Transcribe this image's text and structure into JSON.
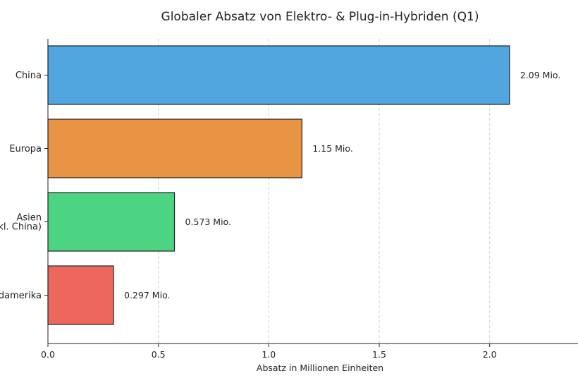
{
  "chart_data": {
    "type": "bar",
    "orientation": "horizontal",
    "title": "Globaler Absatz von Elektro- & Plug-in-Hybriden (Q1)",
    "xlabel": "Absatz in Millionen Einheiten",
    "ylabel": "",
    "xlim": [
      0,
      2.4
    ],
    "xticks": [
      0.0,
      0.5,
      1.0,
      1.5,
      2.0
    ],
    "xtick_labels": [
      "0.0",
      "0.5",
      "1.0",
      "1.5",
      "2.0"
    ],
    "grid": "vertical dashed",
    "categories": [
      {
        "lines": [
          "China"
        ]
      },
      {
        "lines": [
          "Europa"
        ]
      },
      {
        "lines": [
          "Asien",
          "(exkl. China)"
        ]
      },
      {
        "lines": [
          "Nordamerika"
        ]
      }
    ],
    "values": [
      2.09,
      1.15,
      0.573,
      0.297
    ],
    "value_labels": [
      "2.09 Mio.",
      "1.15 Mio.",
      "0.573 Mio.",
      "0.297 Mio."
    ],
    "colors": [
      "#52A6E0",
      "#E99345",
      "#4CD483",
      "#EC685D"
    ]
  }
}
